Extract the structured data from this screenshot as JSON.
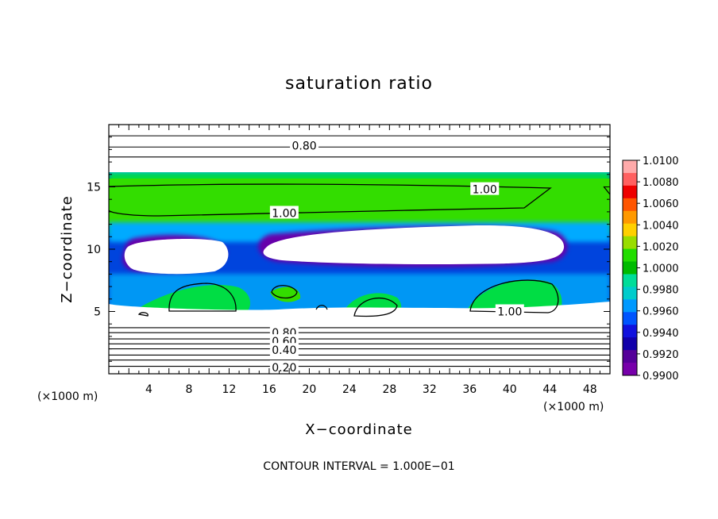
{
  "chart_data": {
    "type": "heatmap",
    "title": "saturation ratio",
    "xlabel": "X−coordinate",
    "ylabel": "Z−coordinate",
    "x_unit": "(×1000 m)",
    "y_unit": "(×1000 m)",
    "xlim": [
      0,
      50
    ],
    "ylim": [
      0,
      20
    ],
    "x_ticks": [
      4,
      8,
      12,
      16,
      20,
      24,
      28,
      32,
      36,
      40,
      44,
      48
    ],
    "y_ticks": [
      5,
      10,
      15
    ],
    "footer": "CONTOUR INTERVAL = 1.000E−01",
    "colorbar": {
      "levels": [
        "1.0100",
        "1.0080",
        "1.0060",
        "1.0040",
        "1.0020",
        "1.0000",
        "0.9980",
        "0.9960",
        "0.9940",
        "0.9920",
        "0.9900"
      ],
      "colors": [
        "#ffaaaa",
        "#ff6060",
        "#ee0000",
        "#ff5500",
        "#ff9900",
        "#ffd000",
        "#99dd00",
        "#22dd00",
        "#00bb00",
        "#00dd99",
        "#00cccc",
        "#0099ff",
        "#0055ff",
        "#1111dd",
        "#1100aa",
        "#550099",
        "#7700aa"
      ]
    },
    "contour_labels": [
      {
        "text": "0.80",
        "x": 19.5,
        "z": 18.3
      },
      {
        "text": "1.00",
        "x": 37.5,
        "z": 14.8
      },
      {
        "text": "1.00",
        "x": 17.5,
        "z": 12.9
      },
      {
        "text": "1.00",
        "x": 40,
        "z": 5
      },
      {
        "text": "0.80",
        "x": 17.5,
        "z": 3.3
      },
      {
        "text": "0.60",
        "x": 17.5,
        "z": 2.6
      },
      {
        "text": "0.40",
        "x": 17.5,
        "z": 1.9
      },
      {
        "text": "0.20",
        "x": 17.5,
        "z": 0.5
      }
    ],
    "horizontal_contours_z": [
      0.6,
      1.1,
      1.5,
      2.0,
      2.4,
      2.8,
      3.3,
      3.7,
      17.4,
      18.2,
      19.1
    ]
  }
}
